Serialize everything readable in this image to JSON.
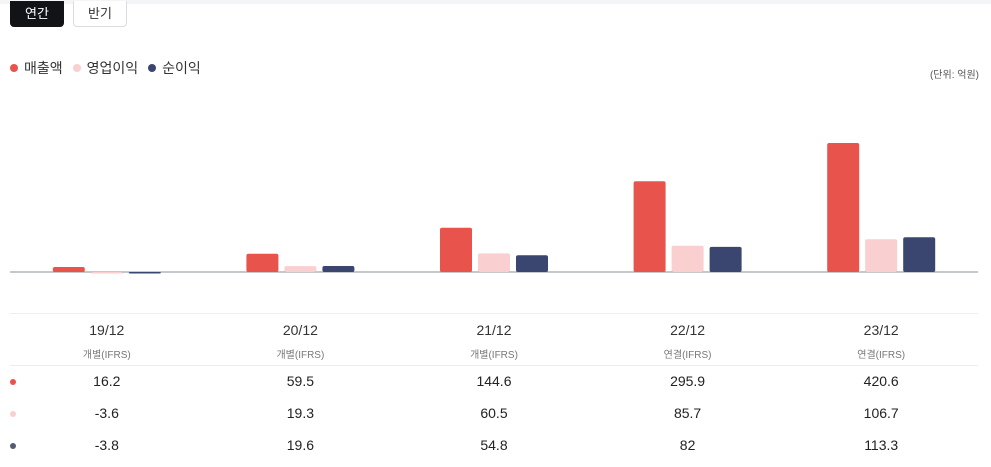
{
  "tabs": {
    "active_label": "연간",
    "inactive_label": "반기"
  },
  "legend": [
    {
      "label": "매출액",
      "color": "#e8544c"
    },
    {
      "label": "영업이익",
      "color": "#f9cfd0"
    },
    {
      "label": "순이익",
      "color": "#3a4570"
    }
  ],
  "unit_label": "(단위: 억원)",
  "chart_data": {
    "type": "bar",
    "categories": [
      "19/12",
      "20/12",
      "21/12",
      "22/12",
      "23/12"
    ],
    "bases": [
      "개별(IFRS)",
      "개별(IFRS)",
      "개별(IFRS)",
      "연결(IFRS)",
      "연결(IFRS)"
    ],
    "series": [
      {
        "name": "매출액",
        "color": "#e8544c",
        "values": [
          16.2,
          59.5,
          144.6,
          295.9,
          420.6
        ],
        "display": [
          "16.2",
          "59.5",
          "144.6",
          "295.9",
          "420.6"
        ]
      },
      {
        "name": "영업이익",
        "color": "#f9cfd0",
        "values": [
          -3.6,
          19.3,
          60.5,
          85.7,
          106.7
        ],
        "display": [
          "-3.6",
          "19.3",
          "60.5",
          "85.7",
          "106.7"
        ]
      },
      {
        "name": "순이익",
        "color": "#3a4570",
        "values": [
          -3.8,
          19.6,
          54.8,
          82,
          113.3
        ],
        "display": [
          "-3.8",
          "19.6",
          "54.8",
          "82",
          "113.3"
        ]
      }
    ],
    "ylim": [
      -10,
      420.6
    ],
    "ylabel": "억원"
  }
}
